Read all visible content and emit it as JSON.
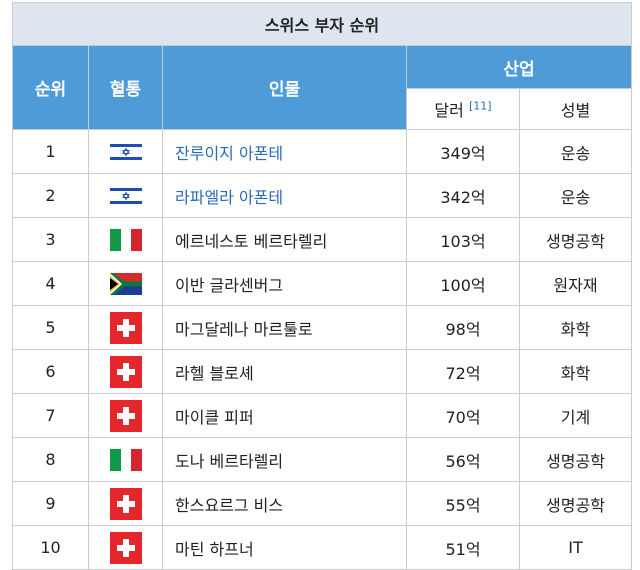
{
  "header": {
    "title": "스위스 부자 순위",
    "columns": [
      "순위",
      "혈통",
      "인물",
      "산업"
    ],
    "subcolumns": [
      "달러",
      "성별"
    ],
    "note": "[11]"
  },
  "table": {
    "rows": [
      [
        "1",
        "잔루이지 아폰테",
        "349억",
        "운송"
      ],
      [
        "2",
        "라파엘라 아폰테",
        "342억",
        "운송"
      ],
      [
        "3",
        "에르네스토 베르타렐리",
        "103억",
        "생명공학"
      ],
      [
        "4",
        "이반 글라센버그",
        "100억",
        "원자재"
      ],
      [
        "5",
        "마그달레나 마르툴로",
        "98억",
        "화학"
      ],
      [
        "6",
        "라헬 블로셰",
        "72억",
        "화학"
      ],
      [
        "7",
        "마이클 피퍼",
        "70억",
        "기계"
      ],
      [
        "8",
        "도나 베르타렐리",
        "56억",
        "생명공학"
      ],
      [
        "9",
        "한스요르그 비스",
        "55억",
        "생명공학"
      ],
      [
        "10",
        "마틴 하프너",
        "51억",
        "IT"
      ]
    ]
  }
}
